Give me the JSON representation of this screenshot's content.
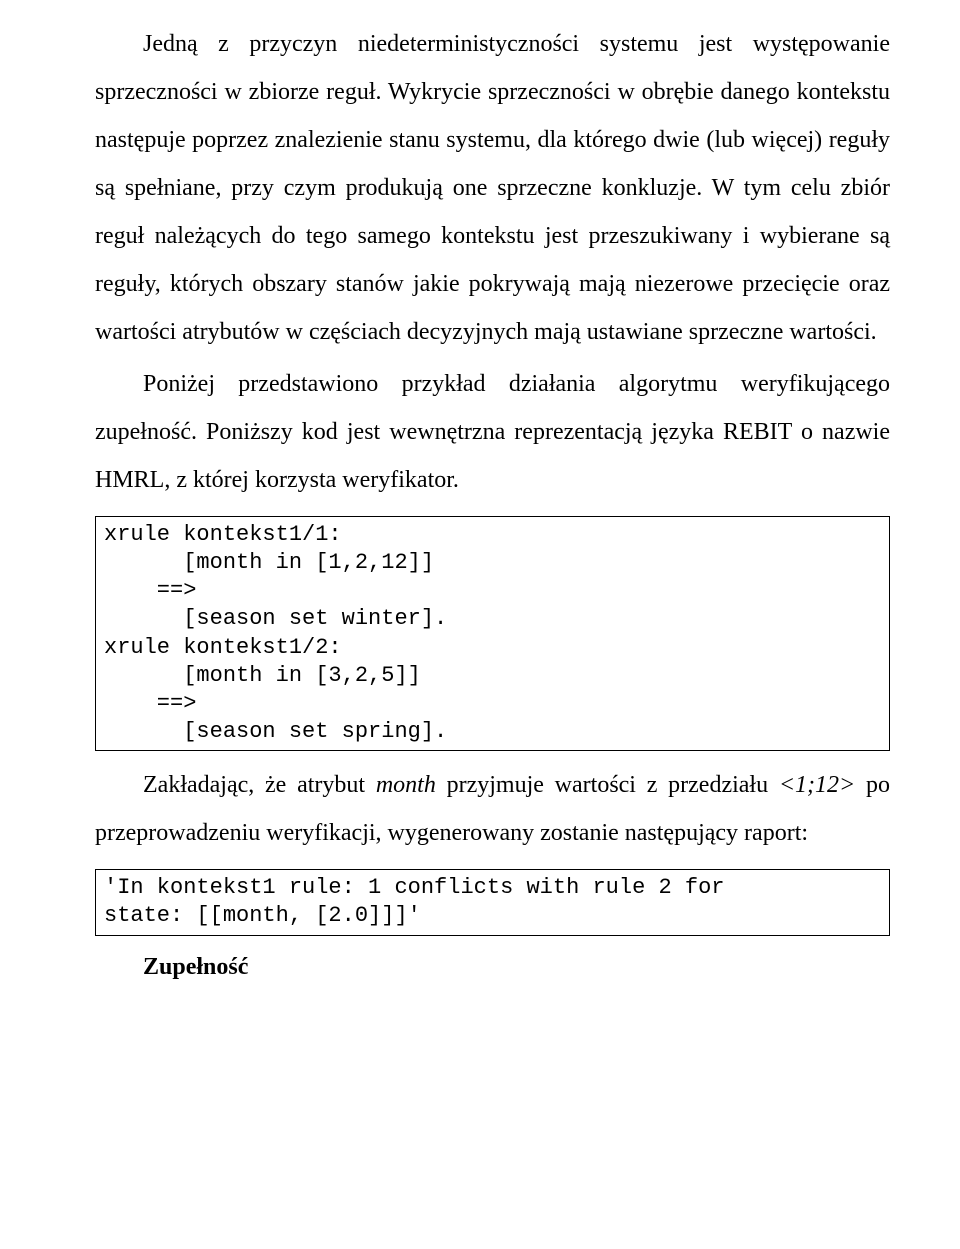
{
  "paragraphs": {
    "p1": "Jedną z przyczyn niedeterministyczności systemu jest występowa­nie sprzeczności w zbiorze reguł. Wykrycie sprzeczności w obrębie dane­go kontekstu następuje poprzez znalezienie stanu systemu, dla którego dwie (lub więcej) reguły są spełniane, przy czym produkują one sprzecz­ne konkluzje. W tym celu zbiór reguł należących do tego samego kontek­stu jest przeszukiwany i wybierane są reguły, których obszary stanów ja­kie pokrywają mają niezerowe przecięcie oraz wartości atrybutów w czę­ściach decyzyjnych mają ustawiane sprzeczne wartości.",
    "p2": "Poniżej przedstawiono przykład działania algorytmu weryfikujące­go zupełność. Poniższy kod jest wewnętrzna reprezentacją języka REBIT o nazwie HMRL, z której korzysta weryfikator.",
    "p3_pre": "Zakładając, że atrybut ",
    "p3_it1": "month",
    "p3_mid": " przyjmuje wartości z przedziału ",
    "p3_it2": "<1;12>",
    "p3_post": " po przeprowadzeniu weryfikacji, wygenerowany zostanie nastę­pujący raport:"
  },
  "code1": "xrule kontekst1/1:\n      [month in [1,2,12]]\n    ==>\n      [season set winter].\nxrule kontekst1/2:\n      [month in [3,2,5]]\n    ==>\n      [season set spring].",
  "code2": "'In kontekst1 rule: 1 conflicts with rule 2 for\nstate: [[month, [2.0]]]'",
  "heading": "Zupełność"
}
